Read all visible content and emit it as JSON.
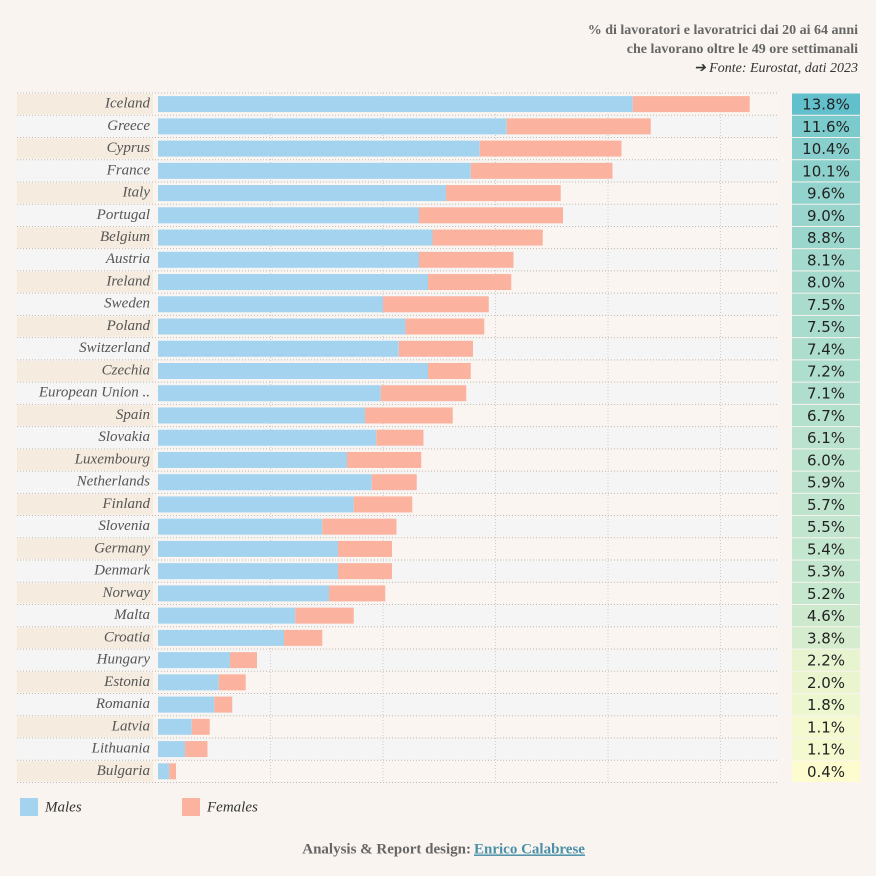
{
  "chart_data": {
    "type": "bar",
    "title_lines": [
      "% di lavoratori e lavoratrici dai 20 ai 64 anni",
      "che lavorano oltre le 49 ore settimanali"
    ],
    "source": "➔ Fonte: Eurostat, dati 2023",
    "credit": "Analysis & Report design:",
    "credit_link": "Enrico Calabrese",
    "orientation": "horizontal",
    "stacked": true,
    "categories": [
      "Iceland",
      "Greece",
      "Cyprus",
      "France",
      "Italy",
      "Portugal",
      "Belgium",
      "Austria",
      "Ireland",
      "Sweden",
      "Poland",
      "Switzerland",
      "Czechia",
      "European Union ..",
      "Spain",
      "Slovakia",
      "Luxembourg",
      "Netherlands",
      "Finland",
      "Slovenia",
      "Germany",
      "Denmark",
      "Norway",
      "Malta",
      "Croatia",
      "Hungary",
      "Estonia",
      "Romania",
      "Latvia",
      "Lithuania",
      "Bulgaria"
    ],
    "series": [
      {
        "name": "Males",
        "color": "#a3d3ee",
        "values": [
          21.1,
          15.5,
          14.3,
          13.9,
          12.8,
          11.6,
          12.2,
          11.6,
          12.0,
          10.0,
          11.0,
          10.7,
          12.0,
          9.9,
          9.2,
          9.7,
          8.4,
          9.5,
          8.7,
          7.3,
          8.0,
          8.0,
          7.6,
          6.1,
          5.6,
          3.2,
          2.7,
          2.5,
          1.5,
          1.2,
          0.5
        ]
      },
      {
        "name": "Females",
        "color": "#fbb3a0",
        "values": [
          5.2,
          6.4,
          6.3,
          6.3,
          5.1,
          6.4,
          4.9,
          4.2,
          3.7,
          4.7,
          3.5,
          3.3,
          1.9,
          3.8,
          3.9,
          2.1,
          3.3,
          2.0,
          2.6,
          3.3,
          2.4,
          2.4,
          2.5,
          2.6,
          1.7,
          1.2,
          1.2,
          0.8,
          0.8,
          1.0,
          0.3
        ]
      }
    ],
    "totals": {
      "values": [
        13.8,
        11.6,
        10.4,
        10.1,
        9.6,
        9.0,
        8.8,
        8.1,
        8.0,
        7.5,
        7.5,
        7.4,
        7.2,
        7.1,
        6.7,
        6.1,
        6.0,
        5.9,
        5.7,
        5.5,
        5.4,
        5.3,
        5.2,
        4.6,
        3.8,
        2.2,
        2.0,
        1.8,
        1.1,
        1.1,
        0.4
      ],
      "value_labels": [
        "13.8%",
        "11.6%",
        "10.4%",
        "10.1%",
        "9.6%",
        "9.0%",
        "8.8%",
        "8.1%",
        "8.0%",
        "7.5%",
        "7.5%",
        "7.4%",
        "7.2%",
        "7.1%",
        "6.7%",
        "6.1%",
        "6.0%",
        "5.9%",
        "5.7%",
        "5.5%",
        "5.4%",
        "5.3%",
        "5.2%",
        "4.6%",
        "3.8%",
        "2.2%",
        "2.0%",
        "1.8%",
        "1.1%",
        "1.1%",
        "0.4%"
      ],
      "colors": [
        "#fcfccf",
        "#62c0cc"
      ]
    },
    "xlim": [
      0,
      27.6
    ],
    "xticks": [
      5,
      10,
      15,
      20,
      25
    ],
    "grid": true
  }
}
